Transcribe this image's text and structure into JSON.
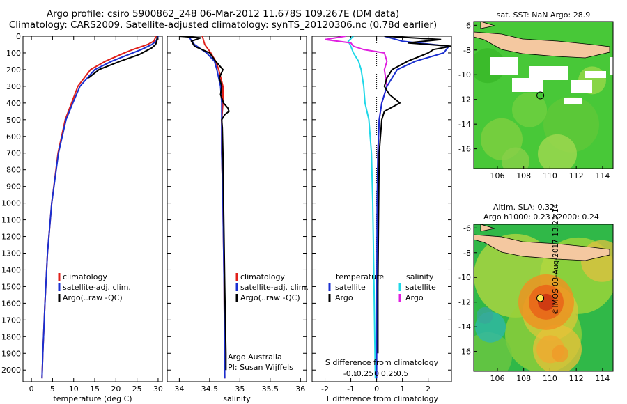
{
  "header": {
    "title_line1": "Argo profile: csiro 5900862_248 06-Mar-2012 11.678S 109.267E (DM data)",
    "title_line2": "Climatology: CARS2009. Satellite-adjusted climatology: synTS_20120306.nc (0.78d earlier)"
  },
  "colors": {
    "climatology": "#e0201a",
    "satellite": "#1a2fd0",
    "argo": "#000000",
    "sat_salinity": "#20d8e8",
    "argo_salinity": "#e020e0",
    "land": "#f4c8a0"
  },
  "chart_data": [
    {
      "type": "line",
      "xlabel": "temperature (deg C)",
      "ylabel": "",
      "xlim": [
        -2,
        31
      ],
      "ylim": [
        2070,
        0
      ],
      "x_ticks": [
        0,
        5,
        10,
        15,
        20,
        25,
        30
      ],
      "y_ticks": [
        0,
        100,
        200,
        300,
        400,
        500,
        600,
        700,
        800,
        900,
        1000,
        1100,
        1200,
        1300,
        1400,
        1500,
        1600,
        1700,
        1800,
        1900,
        2000
      ],
      "legend": [
        "climatology",
        "satellite-adj. clim.",
        "Argo(..raw -QC)"
      ],
      "series": [
        {
          "name": "climatology",
          "depth": [
            0,
            30,
            50,
            80,
            100,
            150,
            200,
            300,
            400,
            500,
            700,
            1000,
            1300,
            1600,
            1900,
            2050
          ],
          "values": [
            29.5,
            29.0,
            27.5,
            24,
            22,
            17.5,
            14,
            11,
            9.5,
            8.0,
            6.3,
            4.8,
            3.8,
            3.2,
            2.7,
            2.5
          ]
        },
        {
          "name": "satellite-adj. clim.",
          "depth": [
            0,
            30,
            50,
            80,
            100,
            150,
            200,
            300,
            400,
            500,
            700,
            1000,
            1300,
            1600,
            1900,
            2050
          ],
          "values": [
            30.0,
            29.5,
            28.5,
            26,
            24,
            19,
            15,
            11.5,
            9.8,
            8.2,
            6.4,
            4.8,
            3.8,
            3.2,
            2.7,
            2.5
          ]
        },
        {
          "name": "Argo(..raw -QC)",
          "depth": [
            0,
            30,
            50,
            70,
            90,
            110,
            150,
            200,
            250
          ],
          "values": [
            29.8,
            29.7,
            29.4,
            28.5,
            27.0,
            25.5,
            21,
            16,
            13.5
          ]
        }
      ]
    },
    {
      "type": "line",
      "xlabel": "salinity",
      "xlim": [
        33.8,
        36.1
      ],
      "ylim": [
        2070,
        0
      ],
      "x_ticks": [
        34,
        34.5,
        35,
        35.5,
        36
      ],
      "legend": [
        "climatology",
        "satellite-adj. clim.",
        "Argo(..raw -QC)"
      ],
      "annotation": [
        "Argo Australia",
        "PI: Susan Wijffels"
      ],
      "series": [
        {
          "name": "climatology",
          "depth": [
            0,
            50,
            100,
            150,
            200,
            300,
            400,
            500,
            700,
            1000,
            1500,
            2050
          ],
          "values": [
            34.38,
            34.42,
            34.52,
            34.6,
            34.65,
            34.72,
            34.72,
            34.7,
            34.7,
            34.72,
            34.74,
            34.75
          ]
        },
        {
          "name": "satellite-adj. clim.",
          "depth": [
            0,
            50,
            100,
            150,
            200,
            300,
            400,
            500,
            700,
            1000,
            1500,
            2050
          ],
          "values": [
            34.15,
            34.25,
            34.45,
            34.58,
            34.62,
            34.68,
            34.7,
            34.7,
            34.7,
            34.72,
            34.74,
            34.75
          ]
        },
        {
          "name": "Argo(..raw -QC)",
          "depth": [
            0,
            10,
            30,
            60,
            100,
            150,
            200,
            250,
            300,
            350,
            400,
            430,
            450,
            470,
            500,
            550,
            700,
            1000,
            1500,
            1900,
            2000
          ],
          "values": [
            34.0,
            34.35,
            34.2,
            34.25,
            34.5,
            34.6,
            34.72,
            34.66,
            34.7,
            34.68,
            34.73,
            34.8,
            34.82,
            34.75,
            34.7,
            34.71,
            34.72,
            34.73,
            34.75,
            34.77,
            34.77
          ]
        }
      ]
    },
    {
      "type": "line",
      "xlabel": "T difference from climatology",
      "x2label": "S difference from climatology",
      "xlim": [
        -2.5,
        2.9
      ],
      "ylim": [
        2070,
        0
      ],
      "x_ticks": [
        -2,
        -1,
        0,
        1,
        2
      ],
      "x2_ticks": [
        -0.5,
        -0.25,
        0,
        0.25,
        0.5
      ],
      "legend_headers": [
        "temperature",
        "salinity"
      ],
      "legend": [
        "satellite",
        "Argo",
        "satellite",
        "Argo"
      ],
      "series": [
        {
          "name": "satellite",
          "depth": [
            0,
            30,
            60,
            100,
            150,
            200,
            300,
            400,
            500,
            700,
            1000,
            1500,
            2050
          ],
          "values": [
            0.3,
            1.0,
            2.8,
            2.6,
            1.5,
            0.8,
            0.4,
            0.2,
            0.1,
            0.05,
            0.02,
            0.01,
            0.0
          ]
        },
        {
          "name": "Argo",
          "depth": [
            0,
            20,
            40,
            60,
            80,
            100,
            150,
            200,
            250,
            300,
            350,
            400,
            450,
            500,
            600,
            700,
            1000,
            1500,
            1900
          ],
          "values": [
            0.3,
            2.5,
            1.2,
            2.9,
            2.2,
            2.0,
            1.2,
            0.6,
            0.4,
            0.3,
            0.5,
            0.9,
            0.3,
            0.2,
            0.15,
            0.1,
            0.08,
            0.05,
            0.05
          ]
        },
        {
          "name": "satellite",
          "depth": [
            0,
            30,
            60,
            100,
            150,
            200,
            300,
            400,
            500,
            700,
            1000,
            1500,
            2050
          ],
          "values": [
            -0.9,
            -1.1,
            -1.0,
            -0.9,
            -0.7,
            -0.6,
            -0.5,
            -0.45,
            -0.3,
            -0.2,
            -0.15,
            -0.1,
            -0.05
          ]
        },
        {
          "name": "Argo",
          "depth": [
            0,
            20,
            40,
            60,
            80,
            100,
            150,
            200,
            300,
            400,
            500,
            700,
            1000,
            1500,
            1900
          ],
          "values": [
            -1.2,
            -2.0,
            -1.0,
            -0.9,
            -0.5,
            0.3,
            0.4,
            0.3,
            0.4,
            0.2,
            0.1,
            0.05,
            0.05,
            0.04,
            0.04
          ]
        }
      ]
    }
  ],
  "maps": {
    "top": {
      "title": "sat. SST: NaN Argo: 28.9",
      "lat_ticks": [
        "-6",
        "-8",
        "-10",
        "-12",
        "-14",
        "-16"
      ],
      "lon_ticks": [
        "106",
        "108",
        "110",
        "112",
        "114"
      ]
    },
    "bottom": {
      "title1": "Altim. SLA: 0.32",
      "title2": "Argo h1000: 0.23 h2000: 0.24",
      "lat_ticks": [
        "-6",
        "-8",
        "-10",
        "-12",
        "-14",
        "-16"
      ],
      "lon_ticks": [
        "106",
        "108",
        "110",
        "112",
        "114"
      ]
    }
  },
  "credit": "©IMOS 03-Aug-2017 13:23:14"
}
